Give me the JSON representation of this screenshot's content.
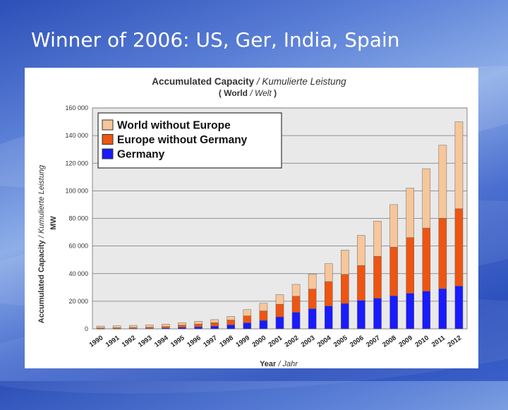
{
  "slide": {
    "title": "Winner of 2006: US, Ger, India, Spain"
  },
  "chart_data": {
    "type": "bar",
    "stacked": true,
    "title": "Accumulated Capacity",
    "title_separator": " / ",
    "title_alt": "Kumulierte Leistung",
    "subtitle": "World",
    "subtitle_separator": " / ",
    "subtitle_alt": "Welt",
    "ylabel": "Accumulated Capacity",
    "ylabel_separator": " / ",
    "ylabel_alt": "Kumulierte Leistung",
    "ylabel_unit": "MW",
    "xlabel": "Year",
    "xlabel_separator": " / ",
    "xlabel_alt": "Jahr",
    "ylim": [
      0,
      160000
    ],
    "yticks": [
      "0",
      "20 000",
      "40 000",
      "60 000",
      "80 000",
      "100 000",
      "120 000",
      "140 000",
      "160 000"
    ],
    "grid": true,
    "legend_position": "top-left",
    "categories": [
      "1990",
      "1991",
      "1992",
      "1993",
      "1994",
      "1995",
      "1996",
      "1997",
      "1998",
      "1999",
      "2000",
      "2001",
      "2002",
      "2003",
      "2004",
      "2005",
      "2006",
      "2007",
      "2008",
      "2009",
      "2010",
      "2011",
      "2012"
    ],
    "series": [
      {
        "name": "Germany",
        "color": "#1a1aff",
        "values": [
          50,
          100,
          200,
          300,
          600,
          1100,
          1500,
          2000,
          2900,
          4400,
          6100,
          8700,
          12000,
          14600,
          16600,
          18400,
          20600,
          22200,
          23900,
          25800,
          27300,
          29100,
          31000
        ]
      },
      {
        "name": "Europe without Germany",
        "color": "#ee5511",
        "values": [
          650,
          700,
          800,
          900,
          1100,
          1600,
          2000,
          2500,
          3500,
          5000,
          6900,
          9100,
          11600,
          14200,
          17600,
          21100,
          25300,
          30300,
          35300,
          40300,
          45700,
          51000,
          56000
        ]
      },
      {
        "name": "World without Europe",
        "color": "#f7c69a",
        "values": [
          1300,
          1400,
          1500,
          1600,
          1700,
          1800,
          2000,
          2200,
          2600,
          4500,
          5500,
          7000,
          8600,
          10900,
          13000,
          17500,
          21800,
          25500,
          30800,
          35800,
          43000,
          52900,
          63000
        ]
      }
    ]
  }
}
